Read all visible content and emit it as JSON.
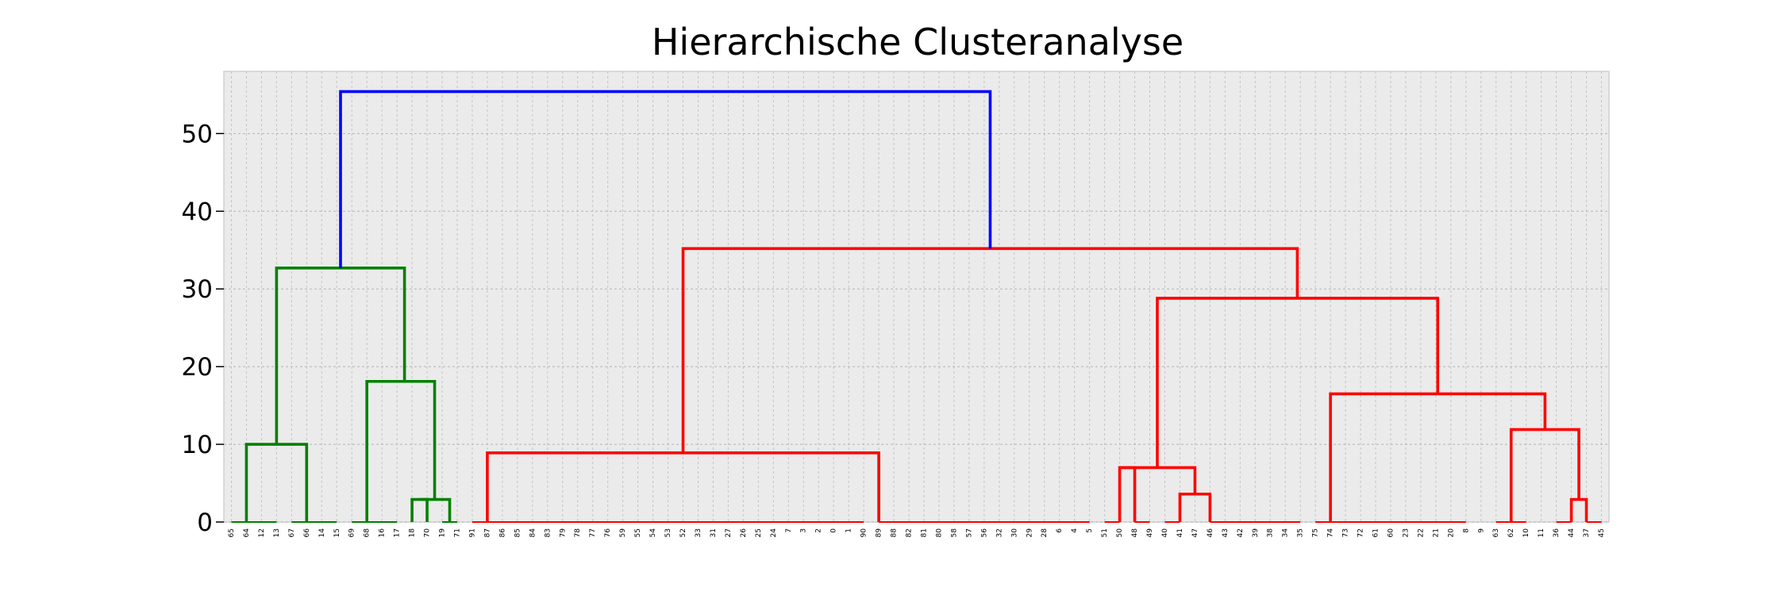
{
  "chart_data": {
    "type": "dendrogram",
    "title": "Hierarchische Clusteranalyse",
    "xlabel": "",
    "ylabel": "",
    "ylim": [
      0,
      58
    ],
    "yticks": [
      0,
      10,
      20,
      30,
      40,
      50
    ],
    "grid": true,
    "leaves": [
      "65",
      "64",
      "12",
      "13",
      "67",
      "66",
      "14",
      "15",
      "69",
      "68",
      "16",
      "17",
      "18",
      "70",
      "19",
      "71",
      "91",
      "87",
      "86",
      "85",
      "84",
      "83",
      "79",
      "78",
      "77",
      "76",
      "59",
      "55",
      "54",
      "53",
      "52",
      "33",
      "31",
      "27",
      "26",
      "25",
      "24",
      "7",
      "3",
      "2",
      "0",
      "1",
      "90",
      "89",
      "88",
      "82",
      "81",
      "80",
      "58",
      "57",
      "56",
      "32",
      "30",
      "29",
      "28",
      "6",
      "4",
      "5",
      "51",
      "50",
      "48",
      "49",
      "40",
      "41",
      "47",
      "46",
      "43",
      "42",
      "39",
      "38",
      "34",
      "35",
      "75",
      "74",
      "73",
      "72",
      "61",
      "60",
      "23",
      "22",
      "21",
      "20",
      "8",
      "9",
      "63",
      "62",
      "10",
      "11",
      "36",
      "44",
      "37",
      "45"
    ],
    "colors": {
      "green": "#008000",
      "red": "#ff0000",
      "blue": "#0000ff",
      "background": "#ebebeb"
    },
    "merges": [
      {
        "color": "green",
        "left_x": 0,
        "left_h": 0,
        "right_x": 1,
        "right_h": 0,
        "height": 0
      },
      {
        "color": "green",
        "left_x": 2,
        "left_h": 0,
        "right_x": 3,
        "right_h": 0,
        "height": 0
      },
      {
        "color": "green",
        "left_x": 0.5,
        "left_h": 0,
        "right_x": 2.5,
        "right_h": 0,
        "height": 0
      },
      {
        "color": "green",
        "left_x": 4,
        "left_h": 0,
        "right_x": 5,
        "right_h": 0,
        "height": 0
      },
      {
        "color": "green",
        "left_x": 6,
        "left_h": 0,
        "right_x": 7,
        "right_h": 0,
        "height": 0
      },
      {
        "color": "green",
        "left_x": 4.5,
        "left_h": 0,
        "right_x": 6.5,
        "right_h": 0,
        "height": 0
      },
      {
        "color": "green",
        "left_x": 1,
        "left_h": 0,
        "right_x": 5,
        "right_h": 0,
        "height": 10
      },
      {
        "color": "green",
        "left_x": 8,
        "left_h": 0,
        "right_x": 9,
        "right_h": 0,
        "height": 0
      },
      {
        "color": "green",
        "left_x": 10,
        "left_h": 0,
        "right_x": 11,
        "right_h": 0,
        "height": 0
      },
      {
        "color": "green",
        "left_x": 8.5,
        "left_h": 0,
        "right_x": 10.5,
        "right_h": 0,
        "height": 0
      },
      {
        "color": "green",
        "left_x": 12,
        "left_h": 0,
        "right_x": 13,
        "right_h": 0,
        "height": 2.9
      },
      {
        "color": "green",
        "left_x": 14,
        "left_h": 0,
        "right_x": 15,
        "right_h": 0,
        "height": 0
      },
      {
        "color": "green",
        "left_x": 12.5,
        "left_h": 2.9,
        "right_x": 14.5,
        "right_h": 0,
        "height": 2.9
      },
      {
        "color": "green",
        "left_x": 9,
        "left_h": 0,
        "right_x": 13.5,
        "right_h": 2.9,
        "height": 18.1
      },
      {
        "color": "green",
        "left_x": 3,
        "left_h": 10,
        "right_x": 11.5,
        "right_h": 18.1,
        "height": 32.7
      },
      {
        "color": "red",
        "left_x": 16,
        "left_h": 0,
        "right_x": 18,
        "right_h": 0,
        "height": 0
      },
      {
        "color": "red",
        "left_x": 17,
        "left_h": 0,
        "right_x": 42,
        "right_h": 0,
        "height": 0
      },
      {
        "color": "red",
        "left_x": 17,
        "left_h": 0,
        "right_x": 43,
        "right_h": 0,
        "height": 8.9
      },
      {
        "color": "red",
        "left_x": 43,
        "left_h": 0,
        "right_x": 57,
        "right_h": 0,
        "height": 0
      },
      {
        "color": "red",
        "left_x": 58,
        "left_h": 0,
        "right_x": 59,
        "right_h": 0,
        "height": 0
      },
      {
        "color": "red",
        "left_x": 60,
        "left_h": 0,
        "right_x": 61,
        "right_h": 0,
        "height": 0
      },
      {
        "color": "red",
        "left_x": 59,
        "left_h": 0,
        "right_x": 60,
        "right_h": 0,
        "height": 7
      },
      {
        "color": "red",
        "left_x": 62,
        "left_h": 0,
        "right_x": 63,
        "right_h": 0,
        "height": 0
      },
      {
        "color": "red",
        "left_x": 63,
        "left_h": 0,
        "right_x": 65,
        "right_h": 0,
        "height": 3.6
      },
      {
        "color": "red",
        "left_x": 65,
        "left_h": 0,
        "right_x": 71,
        "right_h": 0,
        "height": 0
      },
      {
        "color": "red",
        "left_x": 64,
        "left_h": 3.6,
        "right_x": 64,
        "right_h": 3.6,
        "height": 3.6
      },
      {
        "color": "red",
        "left_x": 59,
        "left_h": 7,
        "right_x": 64,
        "right_h": 3.6,
        "height": 7
      },
      {
        "color": "red",
        "left_x": 72,
        "left_h": 0,
        "right_x": 82,
        "right_h": 0,
        "height": 0
      },
      {
        "color": "red",
        "left_x": 84,
        "left_h": 0,
        "right_x": 86,
        "right_h": 0,
        "height": 0
      },
      {
        "color": "red",
        "left_x": 88,
        "left_h": 0,
        "right_x": 89,
        "right_h": 0,
        "height": 0
      },
      {
        "color": "red",
        "left_x": 89,
        "left_h": 0,
        "right_x": 90,
        "right_h": 0,
        "height": 2.9
      },
      {
        "color": "red",
        "left_x": 90,
        "left_h": 0,
        "right_x": 91,
        "right_h": 0,
        "height": 0
      },
      {
        "color": "red",
        "left_x": 85,
        "left_h": 0,
        "right_x": 89.5,
        "right_h": 2.9,
        "height": 11.9
      },
      {
        "color": "red",
        "left_x": 73,
        "left_h": 0,
        "right_x": 87.25,
        "right_h": 11.9,
        "height": 16.5
      },
      {
        "color": "red",
        "left_x": 61.5,
        "left_h": 7,
        "right_x": 80.125,
        "right_h": 16.5,
        "height": 28.8
      },
      {
        "color": "red",
        "left_x": 30,
        "left_h": 8.9,
        "right_x": 70.8,
        "right_h": 28.8,
        "height": 35.2
      },
      {
        "color": "blue",
        "left_x": 7.25,
        "left_h": 32.7,
        "right_x": 50.4,
        "right_h": 35.2,
        "height": 55.4
      }
    ]
  }
}
